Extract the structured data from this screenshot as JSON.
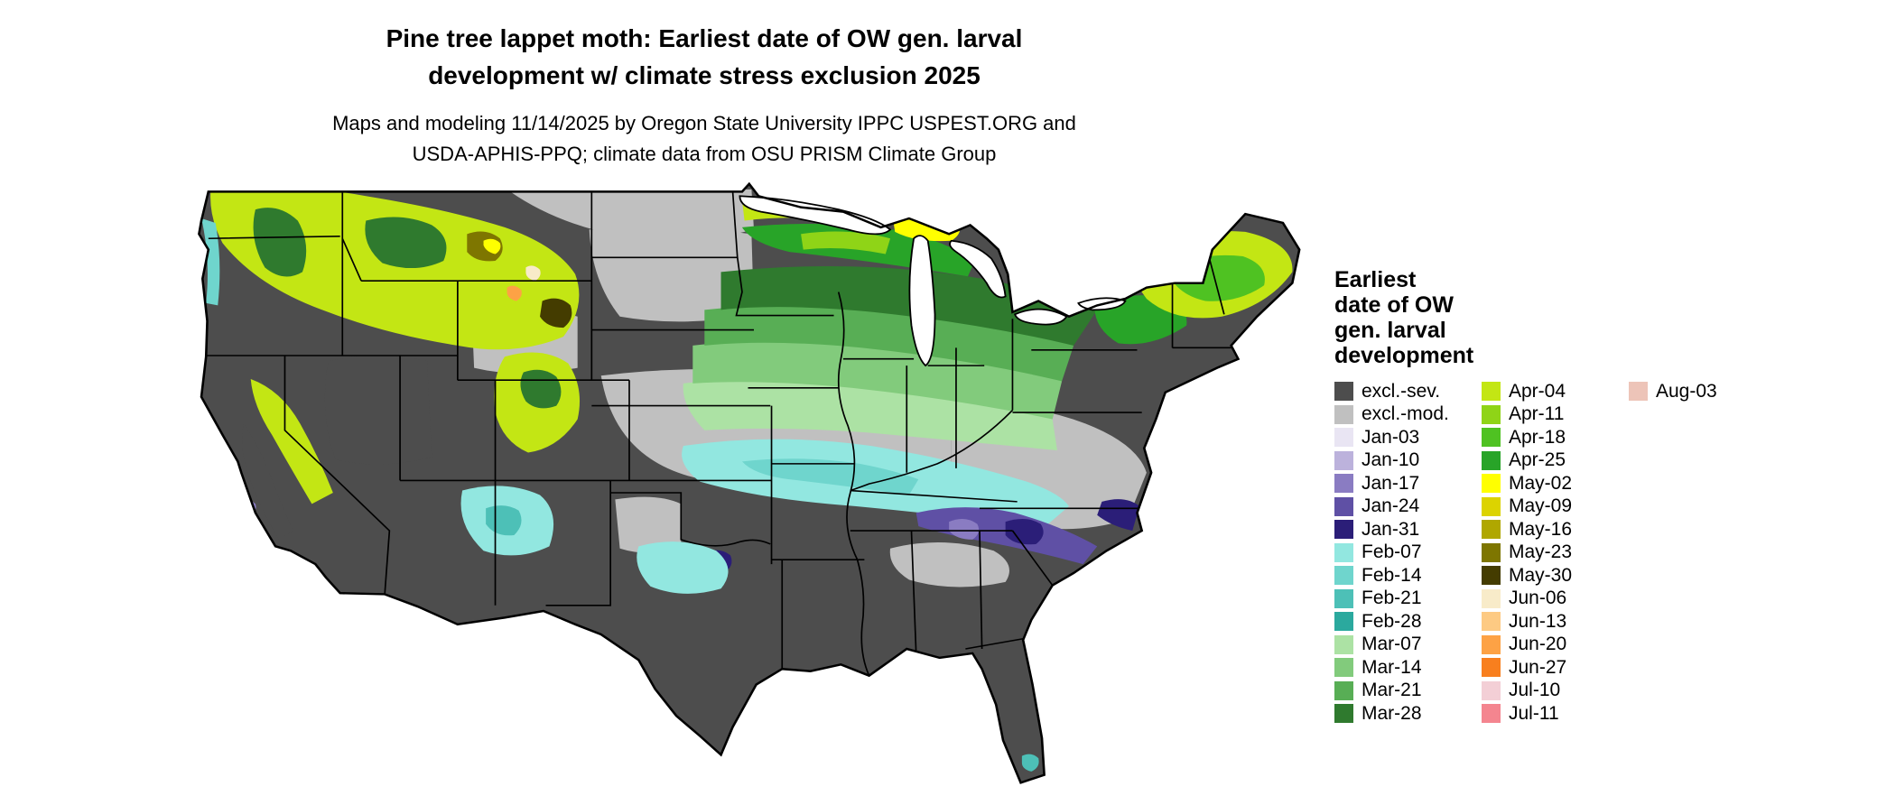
{
  "title": {
    "line1": "Pine tree lappet moth: Earliest date of OW gen. larval",
    "line2": "development w/ climate stress exclusion 2025"
  },
  "subtitle": {
    "line1": "Maps and modeling 11/14/2025 by Oregon State University IPPC USPEST.ORG and",
    "line2": "USDA-APHIS-PPQ; climate data from OSU PRISM Climate Group"
  },
  "legend": {
    "title_lines": [
      "Earliest",
      "date of OW",
      "gen. larval",
      "development"
    ],
    "columns": [
      {
        "entries": [
          {
            "label": "excl.-sev.",
            "color": "#4D4D4D"
          },
          {
            "label": "excl.-mod.",
            "color": "#C0C0C0"
          },
          {
            "label": "Jan-03",
            "color": "#E9E5F3"
          },
          {
            "label": "Jan-10",
            "color": "#BCB2DC"
          },
          {
            "label": "Jan-17",
            "color": "#8A7CC2"
          },
          {
            "label": "Jan-24",
            "color": "#5F50A5"
          },
          {
            "label": "Jan-31",
            "color": "#2B1E78"
          },
          {
            "label": "Feb-07",
            "color": "#92E7E0"
          },
          {
            "label": "Feb-14",
            "color": "#6FD5CD"
          },
          {
            "label": "Feb-21",
            "color": "#4DC0B7"
          },
          {
            "label": "Feb-28",
            "color": "#2BA99E"
          },
          {
            "label": "Mar-07",
            "color": "#ACE2A4"
          },
          {
            "label": "Mar-14",
            "color": "#82CB7C"
          },
          {
            "label": "Mar-21",
            "color": "#58AE55"
          },
          {
            "label": "Mar-28",
            "color": "#2F7A2E"
          }
        ]
      },
      {
        "entries": [
          {
            "label": "Apr-04",
            "color": "#C3E614"
          },
          {
            "label": "Apr-11",
            "color": "#8FD417"
          },
          {
            "label": "Apr-18",
            "color": "#4FC222"
          },
          {
            "label": "Apr-25",
            "color": "#28A428"
          },
          {
            "label": "May-02",
            "color": "#FFFF00"
          },
          {
            "label": "May-09",
            "color": "#DCD300"
          },
          {
            "label": "May-16",
            "color": "#B0A700"
          },
          {
            "label": "May-23",
            "color": "#7E7600"
          },
          {
            "label": "May-30",
            "color": "#443C00"
          },
          {
            "label": "Jun-06",
            "color": "#F8EBC9"
          },
          {
            "label": "Jun-13",
            "color": "#FDCA83"
          },
          {
            "label": "Jun-20",
            "color": "#FDA245"
          },
          {
            "label": "Jun-27",
            "color": "#F87F1E"
          },
          {
            "label": "Jul-10",
            "color": "#F3CFD6"
          },
          {
            "label": "Jul-11",
            "color": "#F4858F"
          }
        ]
      },
      {
        "entries": [
          {
            "label": "Aug-03",
            "color": "#EDC4B8"
          }
        ]
      }
    ]
  }
}
